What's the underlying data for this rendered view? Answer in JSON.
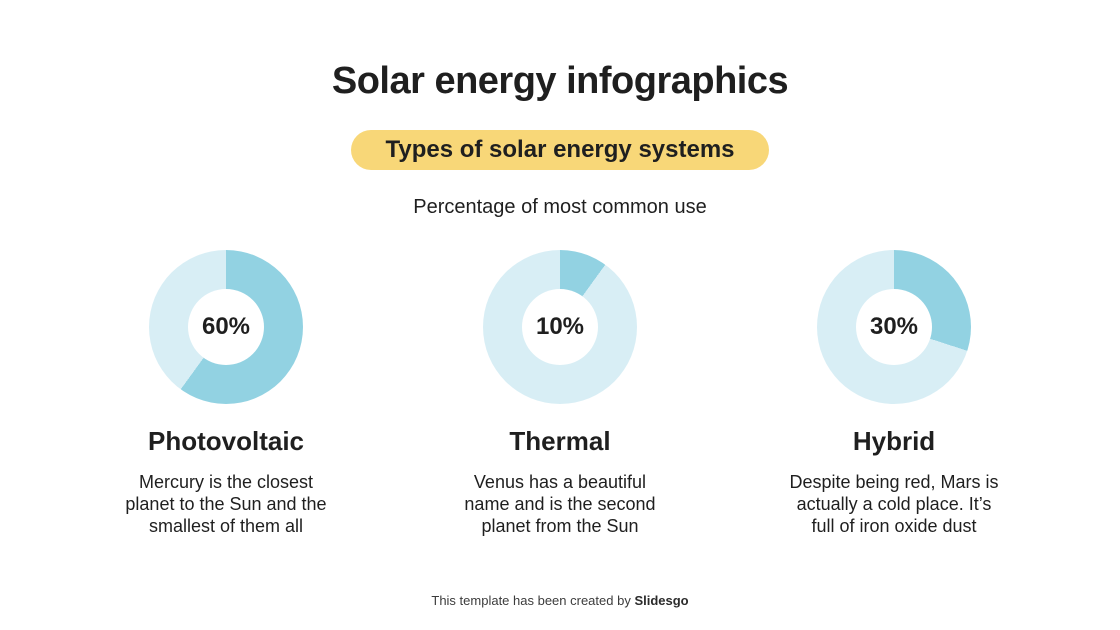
{
  "slide": {
    "title": "Solar energy infographics",
    "badge": "Types of solar energy systems",
    "caption": "Percentage of most common use",
    "footer": {
      "text": "This template has been created by ",
      "brand": "Slidesgo"
    }
  },
  "colors": {
    "segment": "#92d2e2",
    "track": "#d8eef5",
    "badge": "#f8d778",
    "text": "#1f1f1f",
    "footer_text": "#3c3c3c",
    "background": "#ffffff"
  },
  "columns": [
    {
      "name": "Photovoltaic",
      "percent": 60,
      "percent_label": "60%",
      "description": "Mercury is the closest\nplanet to the Sun and the\nsmallest of them all"
    },
    {
      "name": "Thermal",
      "percent": 10,
      "percent_label": "10%",
      "description": "Venus has a beautiful\nname and is the second\nplanet from the Sun"
    },
    {
      "name": "Hybrid",
      "percent": 30,
      "percent_label": "30%",
      "description": "Despite being red, Mars is\nactually a cold place. It’s\nfull of iron oxide dust"
    }
  ],
  "chart_data": {
    "type": "pie",
    "subtype": "donut",
    "title": "Percentage of most common use",
    "categories": [
      "Photovoltaic",
      "Thermal",
      "Hybrid"
    ],
    "values": [
      60,
      10,
      30
    ],
    "unit": "%",
    "labels": [
      "60%",
      "10%",
      "30%"
    ],
    "segment_color": "#92d2e2",
    "track_color": "#d8eef5",
    "start_angle_deg": 0,
    "direction": "clockwise",
    "legend": "none"
  }
}
